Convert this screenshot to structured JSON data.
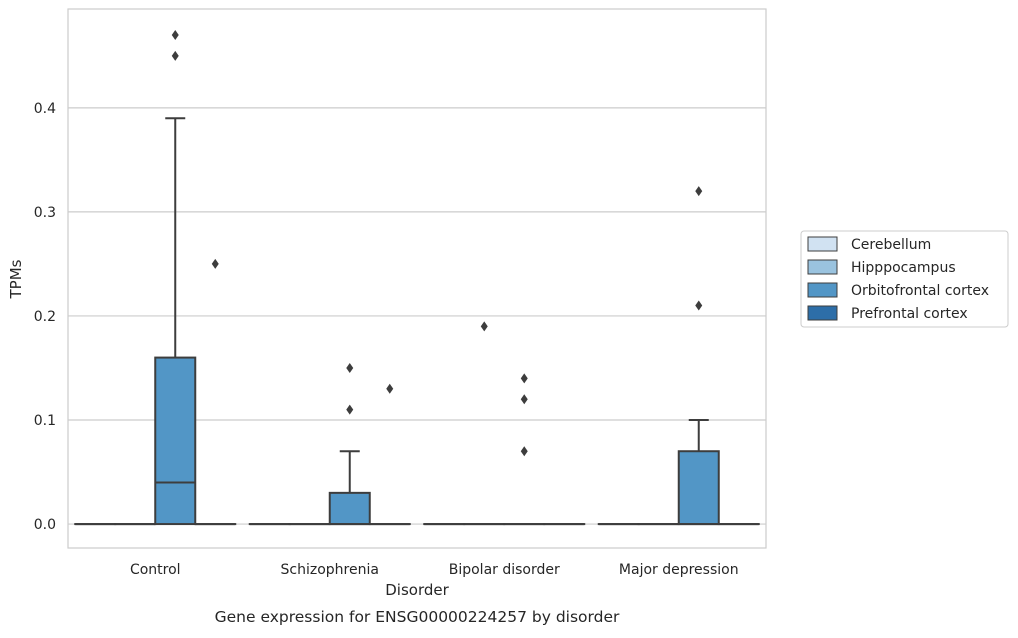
{
  "chart_data": {
    "type": "box",
    "caption": "Gene expression for ENSG00000224257 by disorder",
    "xlabel": "Disorder",
    "ylabel": "TPMs",
    "ylim": [
      -0.023,
      0.495
    ],
    "yticks": [
      0.0,
      0.1,
      0.2,
      0.3,
      0.4
    ],
    "ytick_labels": [
      "0.0",
      "0.1",
      "0.2",
      "0.3",
      "0.4"
    ],
    "grid": "horizontal",
    "legend_position": "right",
    "categories": [
      "Control",
      "Schizophrenia",
      "Bipolar disorder",
      "Major depression"
    ],
    "series": [
      {
        "name": "Cerebellum",
        "color": "#d1e2f2",
        "boxes": [
          {
            "q1": 0,
            "median": 0,
            "q3": 0,
            "whisker_low": 0,
            "whisker_high": 0,
            "outliers": []
          },
          {
            "q1": 0,
            "median": 0,
            "q3": 0,
            "whisker_low": 0,
            "whisker_high": 0,
            "outliers": []
          },
          {
            "q1": 0,
            "median": 0,
            "q3": 0,
            "whisker_low": 0,
            "whisker_high": 0,
            "outliers": []
          },
          {
            "q1": 0,
            "median": 0,
            "q3": 0,
            "whisker_low": 0,
            "whisker_high": 0,
            "outliers": []
          }
        ]
      },
      {
        "name": "Hipppocampus",
        "color": "#9ac3df",
        "boxes": [
          {
            "q1": 0,
            "median": 0,
            "q3": 0,
            "whisker_low": 0,
            "whisker_high": 0,
            "outliers": []
          },
          {
            "q1": 0,
            "median": 0,
            "q3": 0,
            "whisker_low": 0,
            "whisker_high": 0,
            "outliers": []
          },
          {
            "q1": 0,
            "median": 0,
            "q3": 0,
            "whisker_low": 0,
            "whisker_high": 0,
            "outliers": [
              0.19
            ]
          },
          {
            "q1": 0,
            "median": 0,
            "q3": 0,
            "whisker_low": 0,
            "whisker_high": 0,
            "outliers": []
          }
        ]
      },
      {
        "name": "Orbitofrontal cortex",
        "color": "#5296c6",
        "boxes": [
          {
            "q1": 0,
            "median": 0.04,
            "q3": 0.16,
            "whisker_low": 0,
            "whisker_high": 0.39,
            "outliers": [
              0.47,
              0.45
            ]
          },
          {
            "q1": 0,
            "median": 0,
            "q3": 0.03,
            "whisker_low": 0,
            "whisker_high": 0.07,
            "outliers": [
              0.15,
              0.11
            ]
          },
          {
            "q1": 0,
            "median": 0,
            "q3": 0,
            "whisker_low": 0,
            "whisker_high": 0,
            "outliers": [
              0.14,
              0.12,
              0.07
            ]
          },
          {
            "q1": 0,
            "median": 0,
            "q3": 0.07,
            "whisker_low": 0,
            "whisker_high": 0.1,
            "outliers": [
              0.32,
              0.21
            ]
          }
        ]
      },
      {
        "name": "Prefrontal cortex",
        "color": "#2d6ea8",
        "boxes": [
          {
            "q1": 0,
            "median": 0,
            "q3": 0,
            "whisker_low": 0,
            "whisker_high": 0,
            "outliers": [
              0.25
            ]
          },
          {
            "q1": 0,
            "median": 0,
            "q3": 0,
            "whisker_low": 0,
            "whisker_high": 0,
            "outliers": [
              0.13
            ]
          },
          {
            "q1": 0,
            "median": 0,
            "q3": 0,
            "whisker_low": 0,
            "whisker_high": 0,
            "outliers": []
          },
          {
            "q1": 0,
            "median": 0,
            "q3": 0,
            "whisker_low": 0,
            "whisker_high": 0,
            "outliers": []
          }
        ]
      }
    ]
  }
}
